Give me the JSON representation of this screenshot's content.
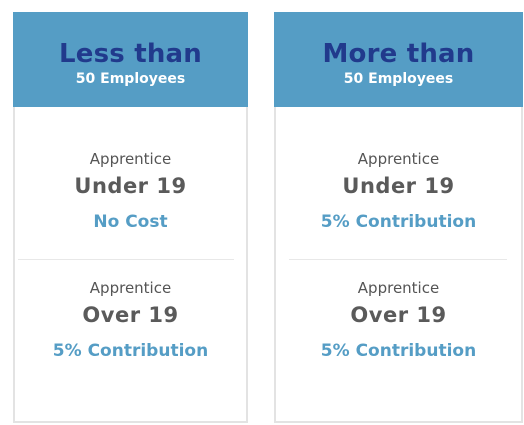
{
  "cards": [
    {
      "title": "Less than",
      "subtitle": "50 Employees",
      "sections": [
        {
          "label": "Apprentice",
          "age": "Under 19",
          "cost": "No Cost"
        },
        {
          "label": "Apprentice",
          "age": "Over 19",
          "cost": "5% Contribution"
        }
      ]
    },
    {
      "title": "More than",
      "subtitle": "50 Employees",
      "sections": [
        {
          "label": "Apprentice",
          "age": "Under 19",
          "cost": "5% Contribution"
        },
        {
          "label": "Apprentice",
          "age": "Over 19",
          "cost": "5% Contribution"
        }
      ]
    }
  ],
  "colors": {
    "header_bg": "#559dc5",
    "header_title": "#213a8c",
    "header_subtitle": "#ffffff",
    "body_text": "#555555",
    "cost_text": "#559dc5",
    "border": "#e3e3e3"
  }
}
